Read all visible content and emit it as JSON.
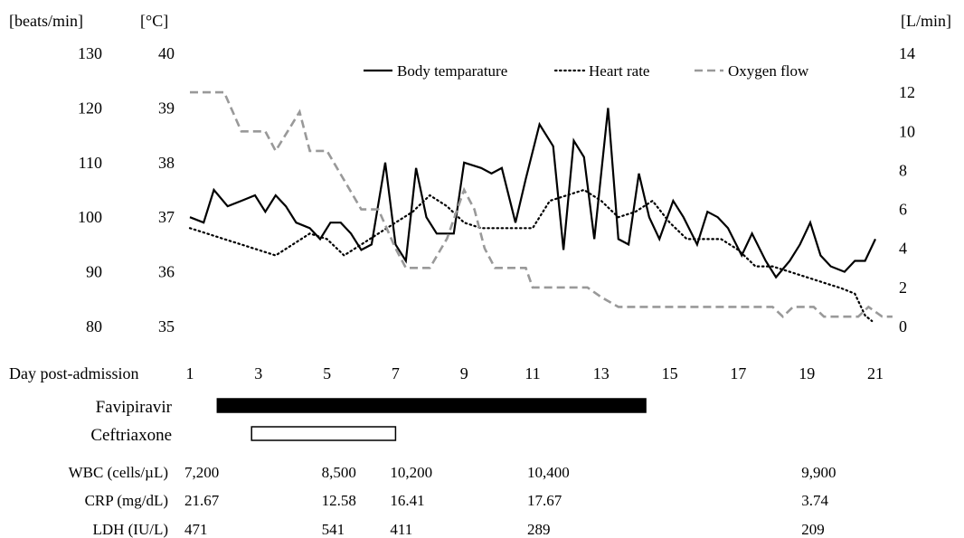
{
  "chart_data": {
    "type": "line",
    "units": {
      "heart_rate_axis": "[beats/min]",
      "temperature_axis": "[°C]",
      "oxygen_axis": "[L/min]"
    },
    "x_axis": {
      "label": "Day post-admission",
      "ticks": [
        1,
        3,
        5,
        7,
        9,
        11,
        13,
        15,
        17,
        19,
        21
      ],
      "range": [
        1,
        21.5
      ]
    },
    "heart_rate_axis": {
      "ticks": [
        80,
        90,
        100,
        110,
        120,
        130
      ],
      "range": [
        80,
        130
      ]
    },
    "temperature_axis": {
      "ticks": [
        35,
        36,
        37,
        38,
        39,
        40
      ],
      "range": [
        35,
        40
      ]
    },
    "oxygen_axis": {
      "ticks": [
        0,
        2,
        4,
        6,
        8,
        10,
        12,
        14
      ],
      "range": [
        0,
        14
      ]
    },
    "legend": {
      "position": "top-right",
      "entries": [
        "Body temparature",
        "Heart rate",
        "Oxygen flow"
      ]
    },
    "series": [
      {
        "name": "Body temparature",
        "axis": "temperature",
        "style": "solid",
        "color": "#000000",
        "points": [
          [
            1.0,
            37.0
          ],
          [
            1.4,
            36.9
          ],
          [
            1.7,
            37.5
          ],
          [
            2.1,
            37.2
          ],
          [
            2.5,
            37.3
          ],
          [
            2.9,
            37.4
          ],
          [
            3.2,
            37.1
          ],
          [
            3.5,
            37.4
          ],
          [
            3.8,
            37.2
          ],
          [
            4.1,
            36.9
          ],
          [
            4.5,
            36.8
          ],
          [
            4.8,
            36.6
          ],
          [
            5.1,
            36.9
          ],
          [
            5.4,
            36.9
          ],
          [
            5.7,
            36.7
          ],
          [
            6.0,
            36.4
          ],
          [
            6.3,
            36.5
          ],
          [
            6.7,
            38.0
          ],
          [
            7.0,
            36.5
          ],
          [
            7.3,
            36.2
          ],
          [
            7.6,
            37.9
          ],
          [
            7.9,
            37.0
          ],
          [
            8.2,
            36.7
          ],
          [
            8.7,
            36.7
          ],
          [
            9.0,
            38.0
          ],
          [
            9.5,
            37.9
          ],
          [
            9.8,
            37.8
          ],
          [
            10.1,
            37.9
          ],
          [
            10.5,
            36.9
          ],
          [
            10.8,
            37.7
          ],
          [
            11.2,
            38.7
          ],
          [
            11.6,
            38.3
          ],
          [
            11.9,
            36.4
          ],
          [
            12.2,
            38.4
          ],
          [
            12.5,
            38.1
          ],
          [
            12.8,
            36.6
          ],
          [
            13.2,
            39.0
          ],
          [
            13.5,
            36.6
          ],
          [
            13.8,
            36.5
          ],
          [
            14.1,
            37.8
          ],
          [
            14.4,
            37.0
          ],
          [
            14.7,
            36.6
          ],
          [
            15.1,
            37.3
          ],
          [
            15.4,
            37.0
          ],
          [
            15.8,
            36.5
          ],
          [
            16.1,
            37.1
          ],
          [
            16.4,
            37.0
          ],
          [
            16.7,
            36.8
          ],
          [
            17.1,
            36.3
          ],
          [
            17.4,
            36.7
          ],
          [
            17.8,
            36.2
          ],
          [
            18.1,
            35.9
          ],
          [
            18.5,
            36.2
          ],
          [
            18.8,
            36.5
          ],
          [
            19.1,
            36.9
          ],
          [
            19.4,
            36.3
          ],
          [
            19.7,
            36.1
          ],
          [
            20.1,
            36.0
          ],
          [
            20.4,
            36.2
          ],
          [
            20.7,
            36.2
          ],
          [
            21.0,
            36.6
          ]
        ]
      },
      {
        "name": "Heart rate",
        "axis": "heart_rate",
        "style": "dotted",
        "color": "#000000",
        "points": [
          [
            1.0,
            98
          ],
          [
            1.5,
            97
          ],
          [
            2.0,
            96
          ],
          [
            2.5,
            95
          ],
          [
            3.0,
            94
          ],
          [
            3.5,
            93
          ],
          [
            4.0,
            95
          ],
          [
            4.5,
            97
          ],
          [
            5.0,
            96
          ],
          [
            5.5,
            93
          ],
          [
            6.0,
            95
          ],
          [
            6.5,
            97
          ],
          [
            7.0,
            99
          ],
          [
            7.5,
            101
          ],
          [
            8.0,
            104
          ],
          [
            8.5,
            102
          ],
          [
            9.0,
            99
          ],
          [
            9.5,
            98
          ],
          [
            10.0,
            98
          ],
          [
            10.5,
            98
          ],
          [
            11.0,
            98
          ],
          [
            11.5,
            103
          ],
          [
            12.0,
            104
          ],
          [
            12.5,
            105
          ],
          [
            13.0,
            103
          ],
          [
            13.5,
            100
          ],
          [
            14.0,
            101
          ],
          [
            14.5,
            103
          ],
          [
            15.0,
            99
          ],
          [
            15.5,
            96
          ],
          [
            16.0,
            96
          ],
          [
            16.5,
            96
          ],
          [
            17.0,
            94
          ],
          [
            17.5,
            91
          ],
          [
            18.0,
            91
          ],
          [
            18.5,
            90
          ],
          [
            19.0,
            89
          ],
          [
            19.5,
            88
          ],
          [
            20.0,
            87
          ],
          [
            20.4,
            86
          ],
          [
            20.7,
            82
          ],
          [
            20.9,
            81
          ]
        ]
      },
      {
        "name": "Oxygen flow",
        "axis": "oxygen",
        "style": "dashed",
        "color": "#999999",
        "points": [
          [
            1.0,
            12
          ],
          [
            2.0,
            12
          ],
          [
            2.5,
            10
          ],
          [
            3.2,
            10
          ],
          [
            3.5,
            9
          ],
          [
            4.2,
            11
          ],
          [
            4.5,
            9
          ],
          [
            5.0,
            9
          ],
          [
            5.5,
            7.5
          ],
          [
            6.0,
            6
          ],
          [
            6.5,
            6
          ],
          [
            7.0,
            4
          ],
          [
            7.3,
            3
          ],
          [
            8.0,
            3
          ],
          [
            8.5,
            4.5
          ],
          [
            9.0,
            7
          ],
          [
            9.3,
            6
          ],
          [
            9.6,
            4
          ],
          [
            9.9,
            3
          ],
          [
            10.8,
            3
          ],
          [
            11.0,
            2
          ],
          [
            12.0,
            2
          ],
          [
            12.6,
            2
          ],
          [
            13.0,
            1.5
          ],
          [
            13.5,
            1
          ],
          [
            14.0,
            1
          ],
          [
            15.0,
            1
          ],
          [
            16.0,
            1
          ],
          [
            17.0,
            1
          ],
          [
            17.5,
            1
          ],
          [
            18.0,
            1
          ],
          [
            18.3,
            0.5
          ],
          [
            18.6,
            1
          ],
          [
            19.2,
            1
          ],
          [
            19.5,
            0.5
          ],
          [
            20.0,
            0.5
          ],
          [
            20.5,
            0.5
          ],
          [
            20.8,
            1
          ],
          [
            21.2,
            0.5
          ],
          [
            21.5,
            0.5
          ]
        ]
      }
    ],
    "treatments": [
      {
        "name": "Favipiravir",
        "start_day": 1.8,
        "end_day": 14.3,
        "fill": "#000000"
      },
      {
        "name": "Ceftriaxone",
        "start_day": 2.8,
        "end_day": 7.0,
        "fill": "#ffffff"
      }
    ],
    "labs": [
      {
        "label": "WBC (cells/µL)",
        "values": [
          {
            "day": 1,
            "text": "7,200"
          },
          {
            "day": 5,
            "text": "8,500"
          },
          {
            "day": 7,
            "text": "10,200"
          },
          {
            "day": 11,
            "text": "10,400"
          },
          {
            "day": 19,
            "text": "9,900"
          }
        ]
      },
      {
        "label": "CRP (mg/dL)",
        "values": [
          {
            "day": 1,
            "text": "21.67"
          },
          {
            "day": 5,
            "text": "12.58"
          },
          {
            "day": 7,
            "text": "16.41"
          },
          {
            "day": 11,
            "text": "17.67"
          },
          {
            "day": 19,
            "text": "3.74"
          }
        ]
      },
      {
        "label": "LDH (IU/L)",
        "values": [
          {
            "day": 1,
            "text": "471"
          },
          {
            "day": 5,
            "text": "541"
          },
          {
            "day": 7,
            "text": "411"
          },
          {
            "day": 11,
            "text": "289"
          },
          {
            "day": 19,
            "text": "209"
          }
        ]
      }
    ]
  }
}
